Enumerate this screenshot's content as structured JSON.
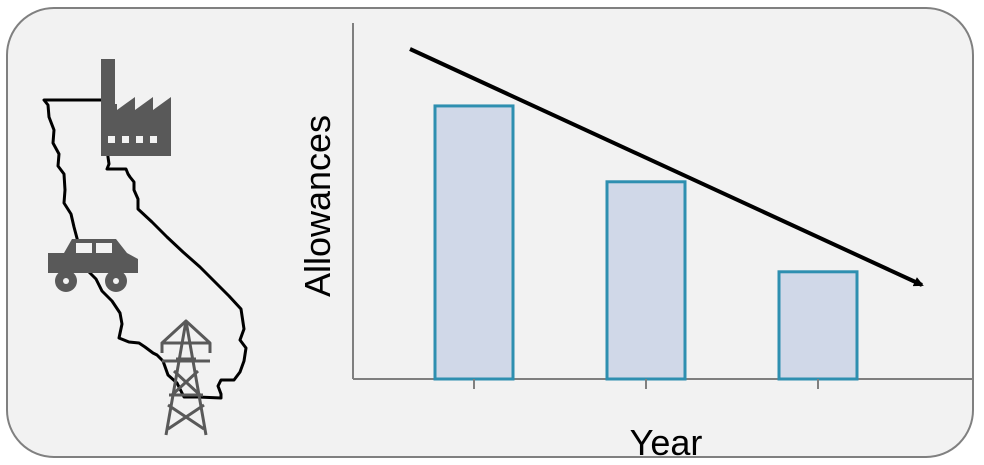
{
  "chart_data": {
    "type": "bar",
    "title": "",
    "xlabel": "Year",
    "ylabel": "Allowances",
    "categories": [
      "",
      "",
      ""
    ],
    "values": [
      270,
      195,
      106
    ],
    "ylim": [
      0,
      352
    ],
    "grid": false,
    "legend": "none",
    "trend_arrow": "decreasing",
    "bar_fill": "#d0d8e8",
    "bar_stroke": "#2e8fb0",
    "axis_color": "#7f7f7f",
    "arrow_color": "#000000"
  },
  "illustration": {
    "icons": [
      "california-outline-icon",
      "factory-icon",
      "car-icon",
      "power-tower-icon"
    ],
    "icon_color": "#595959",
    "outline_color": "#000000"
  },
  "panel": {
    "background": "#f2f2f2",
    "border_color": "#808080"
  }
}
